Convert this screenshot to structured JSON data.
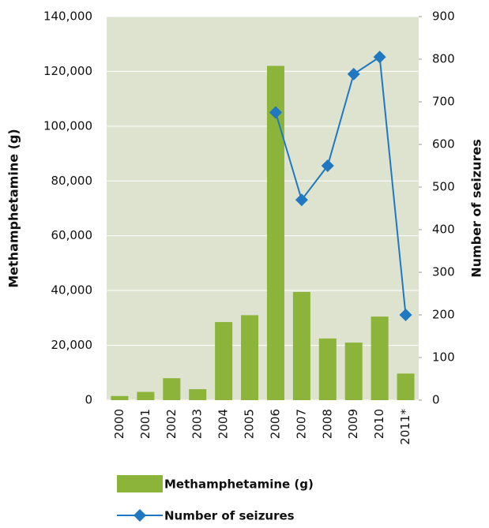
{
  "chart_data": {
    "type": "bar_line",
    "categories": [
      "2000",
      "2001",
      "2002",
      "2003",
      "2004",
      "2005",
      "2006",
      "2007",
      "2008",
      "2009",
      "2010",
      "2011*"
    ],
    "series": [
      {
        "name": "Methamphetamine (g)",
        "type": "bar",
        "color": "#8cb33a",
        "axis": "y",
        "values": [
          1500,
          3000,
          8000,
          4000,
          28500,
          31000,
          122000,
          39500,
          22500,
          21000,
          30500,
          9700
        ]
      },
      {
        "name": "Number of seizures",
        "type": "line",
        "color": "#1f78c1",
        "axis": "y2",
        "values": [
          null,
          null,
          null,
          null,
          null,
          null,
          675,
          470,
          550,
          765,
          805,
          200
        ]
      }
    ],
    "ylabel": "Methamphetamine (g)",
    "y2label": "Number of seizures",
    "ylim": [
      0,
      140000
    ],
    "yticks": [
      {
        "value": 0,
        "label": "0"
      },
      {
        "value": 20000,
        "label": "20,000"
      },
      {
        "value": 40000,
        "label": "40,000"
      },
      {
        "value": 60000,
        "label": "60,000"
      },
      {
        "value": 80000,
        "label": "80,000"
      },
      {
        "value": 100000,
        "label": "100,000"
      },
      {
        "value": 120000,
        "label": "120,000"
      },
      {
        "value": 140000,
        "label": "140,000"
      }
    ],
    "y2lim": [
      0,
      900
    ],
    "y2ticks": [
      0,
      100,
      200,
      300,
      400,
      500,
      600,
      700,
      800,
      900
    ],
    "plot_background": "#dde3cf",
    "grid_color": "#ffffff"
  }
}
